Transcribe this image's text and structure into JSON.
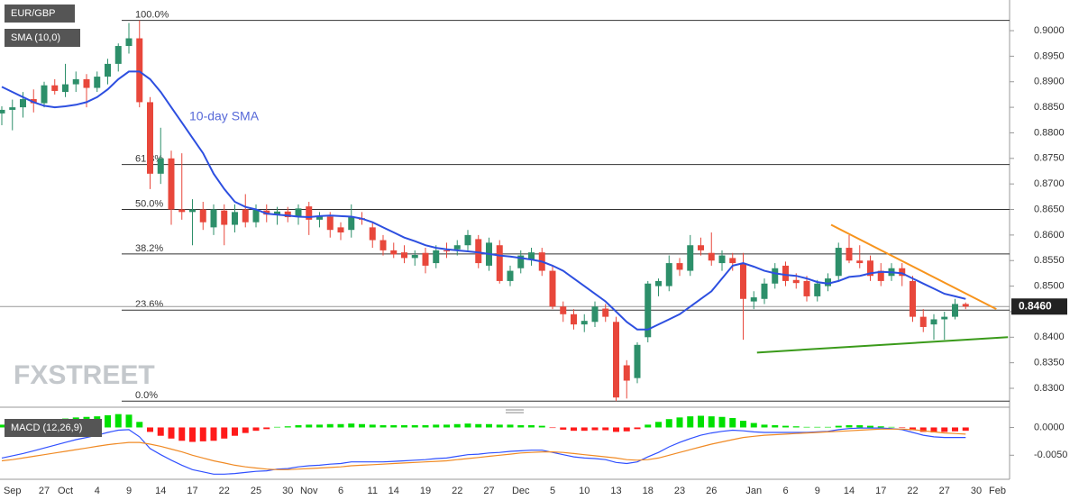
{
  "chart_data": [
    {
      "type": "candlestick",
      "title": "EUR/GBP",
      "annotation": "10-day SMA",
      "watermark": "FXSTREET",
      "up_color": "#2d8f6a",
      "down_color": "#e8473b",
      "categories": [
        null,
        "Sep",
        null,
        null,
        "27",
        null,
        "Oct",
        null,
        null,
        "4",
        null,
        null,
        "9",
        null,
        null,
        "14",
        null,
        null,
        "17",
        null,
        null,
        "22",
        null,
        null,
        "25",
        null,
        null,
        "30",
        null,
        "Nov",
        null,
        null,
        "6",
        null,
        null,
        "11",
        null,
        "14",
        null,
        null,
        "19",
        null,
        null,
        "22",
        null,
        null,
        "27",
        null,
        null,
        "Dec",
        null,
        null,
        "5",
        null,
        null,
        "10",
        null,
        null,
        "13",
        null,
        null,
        "18",
        null,
        null,
        "23",
        null,
        null,
        "26",
        null,
        null,
        null,
        "Jan",
        null,
        null,
        "6",
        null,
        null,
        "9",
        null,
        null,
        "14",
        null,
        null,
        "17",
        null,
        null,
        "22",
        null,
        null,
        "27",
        null,
        null,
        "30",
        null,
        "Feb"
      ],
      "open": [
        0.8838,
        0.8845,
        0.885,
        0.8866,
        0.8858,
        0.8893,
        0.888,
        0.8895,
        0.8905,
        0.8888,
        0.891,
        0.8935,
        0.897,
        0.8985,
        0.886,
        0.872,
        0.875,
        0.865,
        0.8645,
        0.865,
        0.8615,
        0.8648,
        0.862,
        0.865,
        0.8625,
        0.8648,
        0.864,
        0.8646,
        0.8635,
        0.8656,
        0.863,
        0.8636,
        0.8615,
        0.861,
        0.8633,
        0.8615,
        0.859,
        0.857,
        0.8566,
        0.8555,
        0.8565,
        0.8545,
        0.857,
        0.8572,
        0.858,
        0.8592,
        0.854,
        0.858,
        0.851,
        0.8535,
        0.8552,
        0.8566,
        0.853,
        0.846,
        0.8445,
        0.8425,
        0.843,
        0.8456,
        0.843,
        0.8345,
        0.832,
        0.84,
        0.85,
        0.85,
        0.8545,
        0.853,
        0.858,
        0.8565,
        0.8545,
        0.8555,
        0.8545,
        0.847,
        0.8475,
        0.8505,
        0.854,
        0.8512,
        0.851,
        0.848,
        0.85,
        0.852,
        0.8575,
        0.855,
        0.855,
        0.853,
        0.852,
        0.8535,
        0.851,
        0.844,
        0.8425,
        0.8435,
        0.844,
        0.8465,
        null,
        null,
        null
      ],
      "high": [
        0.8852,
        0.8865,
        0.888,
        0.8885,
        0.89,
        0.8905,
        0.8935,
        0.892,
        0.8915,
        0.892,
        0.8945,
        0.8975,
        0.9015,
        0.902,
        0.887,
        0.881,
        0.8765,
        0.876,
        0.867,
        0.8665,
        0.866,
        0.866,
        0.866,
        0.868,
        0.866,
        0.866,
        0.8655,
        0.8655,
        0.866,
        0.8665,
        0.8645,
        0.8645,
        0.8625,
        0.866,
        0.8645,
        0.8625,
        0.86,
        0.8585,
        0.858,
        0.857,
        0.8575,
        0.858,
        0.8585,
        0.859,
        0.861,
        0.86,
        0.8595,
        0.859,
        0.854,
        0.857,
        0.8575,
        0.8575,
        0.854,
        0.847,
        0.8455,
        0.8445,
        0.847,
        0.8465,
        0.844,
        0.8355,
        0.839,
        0.851,
        0.8515,
        0.856,
        0.8555,
        0.86,
        0.8595,
        0.8605,
        0.857,
        0.8565,
        0.8565,
        0.849,
        0.8515,
        0.8545,
        0.8548,
        0.8525,
        0.852,
        0.8512,
        0.8525,
        0.8585,
        0.86,
        0.858,
        0.856,
        0.8545,
        0.8545,
        0.8545,
        0.852,
        0.8455,
        0.8445,
        0.845,
        0.8475,
        0.8468,
        null,
        null,
        null
      ],
      "low": [
        0.8815,
        0.8805,
        0.883,
        0.884,
        0.885,
        0.8875,
        0.887,
        0.888,
        0.885,
        0.888,
        0.8895,
        0.892,
        0.8955,
        0.885,
        0.869,
        0.87,
        0.862,
        0.863,
        0.858,
        0.861,
        0.86,
        0.858,
        0.8605,
        0.8615,
        0.8615,
        0.8625,
        0.862,
        0.8625,
        0.862,
        0.86,
        0.8615,
        0.8595,
        0.859,
        0.8595,
        0.862,
        0.8575,
        0.856,
        0.8555,
        0.8545,
        0.854,
        0.8525,
        0.8535,
        0.8555,
        0.856,
        0.857,
        0.8535,
        0.853,
        0.8505,
        0.85,
        0.8525,
        0.854,
        0.852,
        0.8455,
        0.843,
        0.8415,
        0.841,
        0.842,
        0.843,
        0.8275,
        0.828,
        0.831,
        0.839,
        0.848,
        0.849,
        0.852,
        0.852,
        0.856,
        0.854,
        0.853,
        0.853,
        0.8395,
        0.8455,
        0.8465,
        0.8495,
        0.85,
        0.8495,
        0.847,
        0.847,
        0.849,
        0.851,
        0.8545,
        0.8535,
        0.851,
        0.85,
        0.851,
        0.85,
        0.843,
        0.841,
        0.8395,
        0.8395,
        0.8435,
        0.8455,
        null,
        null,
        null
      ],
      "close": [
        0.8845,
        0.885,
        0.8866,
        0.8858,
        0.8893,
        0.8882,
        0.8895,
        0.8905,
        0.8888,
        0.891,
        0.8935,
        0.897,
        0.8985,
        0.886,
        0.872,
        0.875,
        0.865,
        0.8645,
        0.865,
        0.8625,
        0.865,
        0.862,
        0.8645,
        0.8625,
        0.865,
        0.864,
        0.8646,
        0.8635,
        0.8652,
        0.863,
        0.8636,
        0.861,
        0.8605,
        0.8635,
        0.863,
        0.859,
        0.857,
        0.8562,
        0.8555,
        0.8561,
        0.854,
        0.857,
        0.8568,
        0.858,
        0.86,
        0.8545,
        0.8585,
        0.851,
        0.853,
        0.856,
        0.8566,
        0.853,
        0.846,
        0.8445,
        0.8425,
        0.8432,
        0.846,
        0.844,
        0.8282,
        0.8315,
        0.8385,
        0.8505,
        0.851,
        0.8545,
        0.8532,
        0.858,
        0.857,
        0.855,
        0.856,
        0.8545,
        0.8475,
        0.8478,
        0.8505,
        0.8535,
        0.851,
        0.8506,
        0.848,
        0.8505,
        0.8515,
        0.8575,
        0.855,
        0.8545,
        0.852,
        0.851,
        0.8535,
        0.852,
        0.844,
        0.842,
        0.8435,
        0.844,
        0.8465,
        0.846,
        null,
        null,
        null
      ],
      "series": [
        {
          "name": "SMA (10,0)",
          "color": "#2d4fe0",
          "values": [
            0.889,
            0.888,
            0.887,
            0.886,
            0.8853,
            0.885,
            0.8852,
            0.8855,
            0.886,
            0.887,
            0.8885,
            0.8905,
            0.892,
            0.892,
            0.8905,
            0.888,
            0.885,
            0.882,
            0.879,
            0.876,
            0.872,
            0.869,
            0.8665,
            0.8655,
            0.865,
            0.8642,
            0.864,
            0.8638,
            0.8636,
            0.8635,
            0.8637,
            0.8638,
            0.8637,
            0.8636,
            0.8632,
            0.8625,
            0.8615,
            0.8605,
            0.8595,
            0.8588,
            0.858,
            0.8575,
            0.8572,
            0.857,
            0.8568,
            0.8566,
            0.8563,
            0.856,
            0.8558,
            0.8555,
            0.8552,
            0.8548,
            0.854,
            0.853,
            0.8515,
            0.85,
            0.8485,
            0.847,
            0.845,
            0.843,
            0.8415,
            0.8415,
            0.8425,
            0.8435,
            0.8445,
            0.846,
            0.8475,
            0.849,
            0.8515,
            0.854,
            0.8545,
            0.8538,
            0.853,
            0.8525,
            0.8522,
            0.852,
            0.8515,
            0.8508,
            0.8505,
            0.851,
            0.8518,
            0.852,
            0.8525,
            0.8528,
            0.8527,
            0.8525,
            0.8515,
            0.8505,
            0.8495,
            0.8485,
            0.848,
            0.8475,
            null,
            null,
            null
          ]
        }
      ],
      "ylim": [
        0.8263,
        0.906
      ],
      "yticks": [
        {
          "value": 0.83,
          "label": "0.8300"
        },
        {
          "value": 0.835,
          "label": "0.8350"
        },
        {
          "value": 0.84,
          "label": "0.8400"
        },
        {
          "value": 0.845,
          "label": "0.8450"
        },
        {
          "value": 0.85,
          "label": "0.8500"
        },
        {
          "value": 0.855,
          "label": "0.8550"
        },
        {
          "value": 0.86,
          "label": "0.8600"
        },
        {
          "value": 0.865,
          "label": "0.8650"
        },
        {
          "value": 0.87,
          "label": "0.8700"
        },
        {
          "value": 0.875,
          "label": "0.8750"
        },
        {
          "value": 0.88,
          "label": "0.8800"
        },
        {
          "value": 0.885,
          "label": "0.8850"
        },
        {
          "value": 0.89,
          "label": "0.8900"
        },
        {
          "value": 0.895,
          "label": "0.8950"
        },
        {
          "value": 0.9,
          "label": "0.9000"
        }
      ],
      "levels": [
        {
          "label": "100.0%",
          "value": 0.902
        },
        {
          "label": "61.8%",
          "value": 0.8738
        },
        {
          "label": "50.0%",
          "value": 0.865
        },
        {
          "label": "38.2%",
          "value": 0.8563
        },
        {
          "label": "23.6%",
          "value": 0.8453
        },
        {
          "label": "0.0%",
          "value": 0.8275
        }
      ],
      "last_price": {
        "value": 0.846,
        "label": "0.8460"
      },
      "trendlines": [
        {
          "color": "#f7941d",
          "x": [
            78.3,
            93.9
          ],
          "y": [
            0.862,
            0.8455
          ]
        },
        {
          "color": "#3a9a1a",
          "x": [
            71.3,
            95
          ],
          "y": [
            0.837,
            0.84
          ]
        }
      ]
    },
    {
      "type": "macd",
      "title": "MACD (12,26,9)",
      "histogram": {
        "up_color": "#00e000",
        "down_color": "#ff1a1a",
        "values": [
          0.0005,
          0.0007,
          0.0008,
          0.001,
          0.0012,
          0.0014,
          0.0016,
          0.0018,
          0.0019,
          0.002,
          0.0022,
          0.0024,
          0.0023,
          0.001,
          -0.0008,
          -0.0015,
          -0.002,
          -0.0024,
          -0.0026,
          -0.0025,
          -0.0024,
          -0.002,
          -0.0015,
          -0.001,
          -0.0006,
          -0.0003,
          0.0001,
          0.0002,
          0.0004,
          0.0005,
          0.0005,
          0.0006,
          0.0006,
          0.0007,
          0.0006,
          0.0005,
          0.0004,
          0.0004,
          0.0004,
          0.0004,
          0.0004,
          0.0005,
          0.0005,
          0.0006,
          0.0007,
          0.0006,
          0.0006,
          0.0005,
          0.0005,
          0.0004,
          0.0004,
          0.0003,
          -0.0001,
          -0.0004,
          -0.0006,
          -0.0006,
          -0.0005,
          -0.0005,
          -0.0008,
          -0.0007,
          -0.0003,
          0.0005,
          0.001,
          0.0015,
          0.0018,
          0.002,
          0.0021,
          0.002,
          0.0019,
          0.0017,
          0.0012,
          0.0008,
          0.0005,
          0.0004,
          0.0003,
          0.0002,
          0.0001,
          0.0001,
          0.0001,
          0.0003,
          0.0004,
          0.0004,
          0.0003,
          0.0002,
          0.0001,
          -0.0001,
          -0.0005,
          -0.0008,
          -0.0009,
          -0.0008,
          -0.0007,
          -0.0006,
          null,
          null,
          null
        ]
      },
      "series": [
        {
          "color": "#3050ff",
          "values": [
            -0.0055,
            -0.0051,
            -0.0047,
            -0.0042,
            -0.0037,
            -0.0032,
            -0.0027,
            -0.0022,
            -0.0018,
            -0.0014,
            -0.0009,
            -0.0005,
            -0.0004,
            -0.0017,
            -0.0038,
            -0.0049,
            -0.0059,
            -0.0068,
            -0.0076,
            -0.008,
            -0.0084,
            -0.0084,
            -0.0083,
            -0.0081,
            -0.0079,
            -0.0078,
            -0.0075,
            -0.0074,
            -0.0071,
            -0.0069,
            -0.0068,
            -0.0066,
            -0.0065,
            -0.0062,
            -0.0062,
            -0.0062,
            -0.0062,
            -0.0061,
            -0.006,
            -0.0059,
            -0.0058,
            -0.0056,
            -0.0055,
            -0.0052,
            -0.0049,
            -0.0048,
            -0.0046,
            -0.0045,
            -0.0043,
            -0.0042,
            -0.0041,
            -0.0041,
            -0.0045,
            -0.0049,
            -0.0053,
            -0.0055,
            -0.0056,
            -0.0058,
            -0.0063,
            -0.0065,
            -0.0062,
            -0.0053,
            -0.0045,
            -0.0035,
            -0.0027,
            -0.002,
            -0.0014,
            -0.001,
            -0.0007,
            -0.0005,
            -0.0006,
            -0.0008,
            -0.0009,
            -0.0009,
            -0.0009,
            -0.0009,
            -0.0009,
            -0.0008,
            -0.0007,
            -0.0004,
            -0.0002,
            -0.0001,
            -0.0001,
            -0.0001,
            -0.0002,
            -0.0004,
            -0.0009,
            -0.0014,
            -0.0017,
            -0.0018,
            -0.0018,
            -0.0018,
            null,
            null,
            null
          ]
        },
        {
          "color": "#f08a24",
          "values": [
            -0.006,
            -0.0058,
            -0.0055,
            -0.0052,
            -0.0049,
            -0.0046,
            -0.0043,
            -0.004,
            -0.0037,
            -0.0034,
            -0.0031,
            -0.0029,
            -0.0027,
            -0.0027,
            -0.003,
            -0.0034,
            -0.0039,
            -0.0044,
            -0.005,
            -0.0055,
            -0.006,
            -0.0064,
            -0.0068,
            -0.0071,
            -0.0073,
            -0.0075,
            -0.0076,
            -0.0076,
            -0.0075,
            -0.0074,
            -0.0073,
            -0.0072,
            -0.0071,
            -0.0069,
            -0.0068,
            -0.0067,
            -0.0066,
            -0.0065,
            -0.0064,
            -0.0063,
            -0.0062,
            -0.0061,
            -0.006,
            -0.0058,
            -0.0056,
            -0.0054,
            -0.0052,
            -0.005,
            -0.0048,
            -0.0046,
            -0.0045,
            -0.0044,
            -0.0044,
            -0.0045,
            -0.0047,
            -0.0049,
            -0.0051,
            -0.0053,
            -0.0055,
            -0.0058,
            -0.0059,
            -0.0058,
            -0.0055,
            -0.005,
            -0.0045,
            -0.004,
            -0.0035,
            -0.003,
            -0.0026,
            -0.0022,
            -0.0018,
            -0.0016,
            -0.0014,
            -0.0013,
            -0.0012,
            -0.0011,
            -0.001,
            -0.0009,
            -0.0008,
            -0.0007,
            -0.0006,
            -0.0005,
            -0.0004,
            -0.0003,
            -0.0003,
            -0.0003,
            -0.0004,
            -0.0006,
            -0.0008,
            -0.001,
            -0.0011,
            -0.0012,
            null,
            null,
            null
          ]
        }
      ],
      "ylim": [
        -0.00933,
        0.00267
      ],
      "yticks": [
        {
          "value": 0,
          "label": "0.0000"
        },
        {
          "value": -0.005,
          "label": "-0.0050"
        }
      ]
    }
  ]
}
